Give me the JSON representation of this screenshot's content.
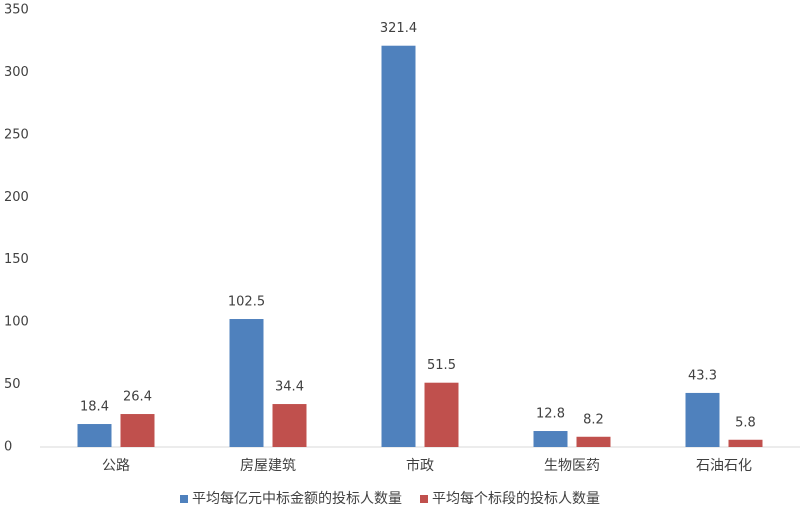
{
  "chart_data": {
    "type": "bar",
    "categories": [
      "公路",
      "房屋建筑",
      "市政",
      "生物医药",
      "石油石化"
    ],
    "series": [
      {
        "name": "平均每亿元中标金额的投标人数量",
        "color": "#4f81bd",
        "values": [
          18.4,
          102.5,
          321.4,
          12.8,
          43.3
        ]
      },
      {
        "name": "平均每个标段的投标人数量",
        "color": "#c0504d",
        "values": [
          26.4,
          34.4,
          51.5,
          8.2,
          5.8
        ]
      }
    ],
    "ylim": [
      0,
      350
    ],
    "yticks": [
      0,
      50,
      100,
      150,
      200,
      250,
      300,
      350
    ],
    "grid": false,
    "legend": "bottom"
  }
}
